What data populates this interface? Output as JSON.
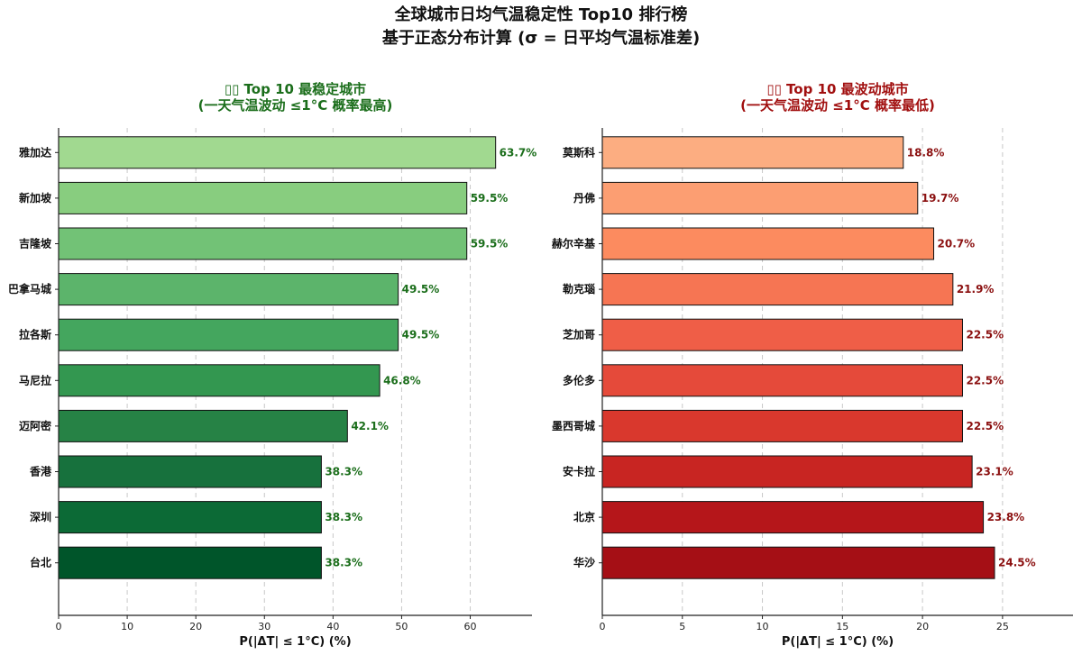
{
  "figure": {
    "title_line1": "全球城市日均气温稳定性 Top10 排行榜",
    "title_line2": "基于正态分布计算 (σ = 日平均气温标准差)"
  },
  "chart_data": [
    {
      "type": "bar",
      "orientation": "horizontal",
      "title_line1": "▯▯ Top 10 最稳定城市",
      "title_line2": "(一天气温波动 ≤1°C 概率最高)",
      "title_color": "#1b6e1b",
      "label_color": "#1b6e1b",
      "xlabel": "P(|ΔT| ≤ 1°C) (%)",
      "xlim": [
        0,
        69
      ],
      "xticks": [
        0,
        10,
        20,
        30,
        40,
        50,
        60
      ],
      "grid": true,
      "categories": [
        "雅加达",
        "新加坡",
        "吉隆坡",
        "巴拿马城",
        "拉各斯",
        "马尼拉",
        "迈阿密",
        "香港",
        "深圳",
        "台北"
      ],
      "values": [
        63.7,
        59.5,
        59.5,
        49.5,
        49.5,
        46.8,
        42.1,
        38.3,
        38.3,
        38.3
      ],
      "value_labels": [
        "63.7%",
        "59.5%",
        "59.5%",
        "49.5%",
        "49.5%",
        "46.8%",
        "42.1%",
        "38.3%",
        "38.3%",
        "38.3%"
      ],
      "colors": [
        "#a1d990",
        "#88cd7f",
        "#72c276",
        "#5cb46b",
        "#44a65e",
        "#339750",
        "#268245",
        "#17713d",
        "#0c6a36",
        "#00552a"
      ]
    },
    {
      "type": "bar",
      "orientation": "horizontal",
      "title_line1": "▯▯ Top 10 最波动城市",
      "title_line2": "(一天气温波动 ≤1°C 概率最低)",
      "title_color": "#a10f0f",
      "label_color": "#8b1010",
      "xlabel": "P(|ΔT| ≤ 1°C) (%)",
      "xlim": [
        0,
        29.4
      ],
      "xticks": [
        0,
        5,
        10,
        15,
        20,
        25
      ],
      "grid": true,
      "categories": [
        "莫斯科",
        "丹佛",
        "赫尔辛基",
        "勒克瑙",
        "芝加哥",
        "多伦多",
        "墨西哥城",
        "安卡拉",
        "北京",
        "华沙"
      ],
      "values": [
        18.8,
        19.7,
        20.7,
        21.9,
        22.5,
        22.5,
        22.5,
        23.1,
        23.8,
        24.5
      ],
      "value_labels": [
        "18.8%",
        "19.7%",
        "20.7%",
        "21.9%",
        "22.5%",
        "22.5%",
        "22.5%",
        "23.1%",
        "23.8%",
        "24.5%"
      ],
      "colors": [
        "#fcad81",
        "#fc9e72",
        "#fc8b5f",
        "#f67553",
        "#ef5e47",
        "#e54a3a",
        "#d9382d",
        "#c82522",
        "#b5161a",
        "#a50f15"
      ]
    }
  ]
}
